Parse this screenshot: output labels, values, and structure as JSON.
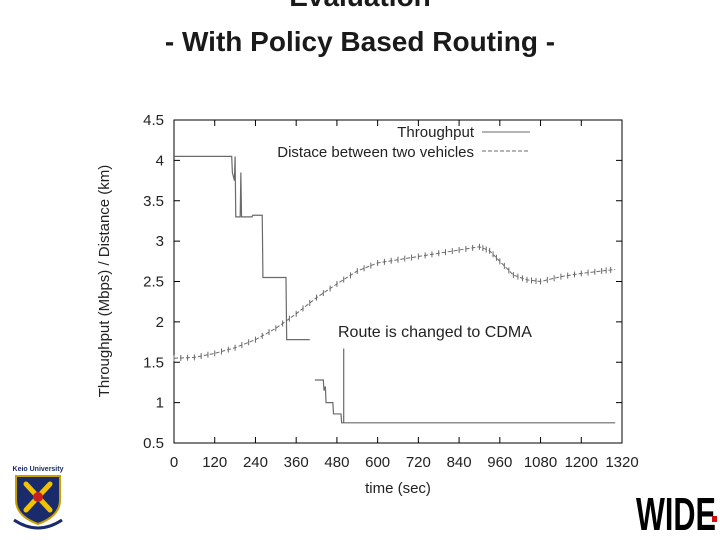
{
  "slide": {
    "title_line1": "Evaluation",
    "title_line2": "- With Policy Based Routing -"
  },
  "logos": {
    "left": "Keio University",
    "right": "WIDE"
  },
  "chart_data": {
    "type": "line",
    "xlabel": "time (sec)",
    "ylabel": "Throughput (Mbps) / Distance (km)",
    "xlim": [
      0,
      1320
    ],
    "ylim": [
      0.5,
      4.5
    ],
    "xticks": [
      "0",
      "120",
      "240",
      "360",
      "480",
      "600",
      "720",
      "840",
      "960",
      "1080",
      "1200",
      "1320"
    ],
    "yticks": [
      "0.5",
      "1",
      "1.5",
      "2",
      "2.5",
      "3",
      "3.5",
      "4",
      "4.5"
    ],
    "grid": false,
    "legend_position": "top-right",
    "annotation": "Route is changed to CDMA",
    "series": [
      {
        "name": "Throughput",
        "color": "#6a6a6a",
        "style": "solid",
        "segments": [
          [
            [
              0,
              4.05
            ],
            [
              170,
              4.05
            ],
            [
              172,
              3.85
            ],
            [
              178,
              3.75
            ],
            [
              180,
              4.05
            ],
            [
              182,
              3.3
            ],
            [
              195,
              3.3
            ],
            [
              197,
              3.85
            ],
            [
              199,
              3.3
            ],
            [
              230,
              3.3
            ],
            [
              232,
              3.32
            ],
            [
              260,
              3.32
            ],
            [
              262,
              2.55
            ],
            [
              330,
              2.55
            ],
            [
              332,
              1.78
            ],
            [
              400,
              1.78
            ]
          ],
          [
            [
              415,
              1.28
            ],
            [
              440,
              1.28
            ],
            [
              442,
              1.15
            ],
            [
              446,
              1.2
            ],
            [
              448,
              1.0
            ],
            [
              468,
              1.0
            ],
            [
              470,
              0.86
            ],
            [
              492,
              0.86
            ],
            [
              494,
              0.75
            ],
            [
              1300,
              0.75
            ]
          ]
        ]
      },
      {
        "name": "Distace between two vehicles",
        "color": "#6a6a6a",
        "style": "dashed",
        "points": [
          [
            0,
            1.55
          ],
          [
            60,
            1.56
          ],
          [
            120,
            1.61
          ],
          [
            180,
            1.68
          ],
          [
            240,
            1.78
          ],
          [
            300,
            1.92
          ],
          [
            360,
            2.1
          ],
          [
            420,
            2.3
          ],
          [
            480,
            2.47
          ],
          [
            540,
            2.63
          ],
          [
            600,
            2.73
          ],
          [
            660,
            2.77
          ],
          [
            720,
            2.81
          ],
          [
            780,
            2.85
          ],
          [
            840,
            2.89
          ],
          [
            900,
            2.93
          ],
          [
            930,
            2.88
          ],
          [
            960,
            2.75
          ],
          [
            1000,
            2.58
          ],
          [
            1040,
            2.52
          ],
          [
            1080,
            2.5
          ],
          [
            1140,
            2.56
          ],
          [
            1200,
            2.6
          ],
          [
            1260,
            2.63
          ],
          [
            1300,
            2.65
          ]
        ]
      }
    ],
    "route_change_marker": {
      "x": 500,
      "y_top": 1.67,
      "y_bottom": 0.75
    }
  }
}
